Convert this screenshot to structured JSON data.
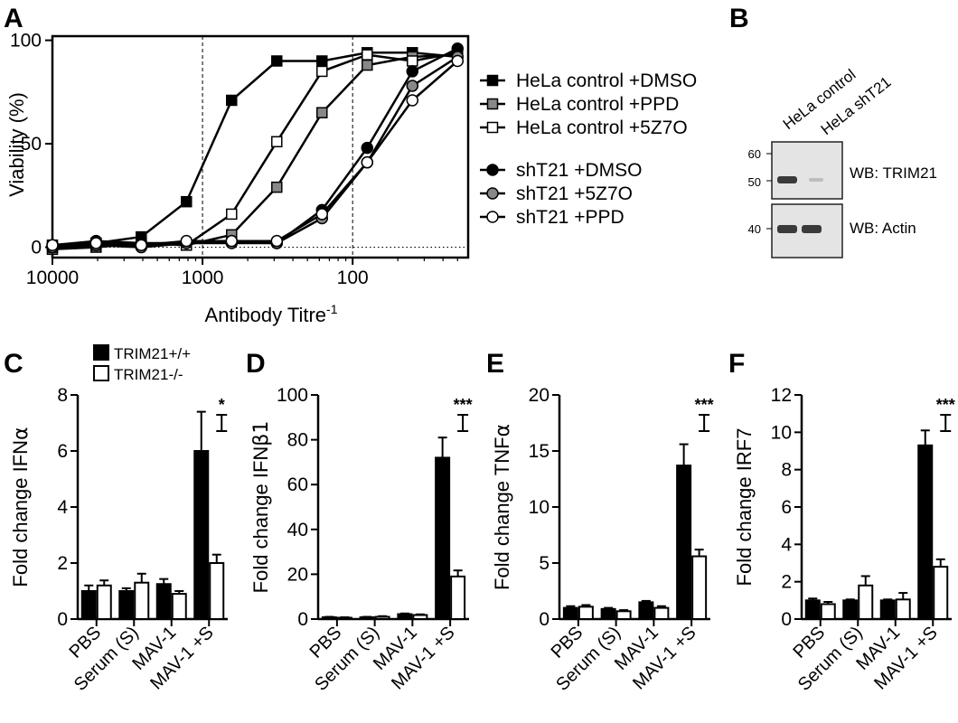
{
  "panels": {
    "A": "A",
    "B": "B",
    "C": "C",
    "D": "D",
    "E": "E",
    "F": "F"
  },
  "colors": {
    "black": "#000000",
    "grey": "#888888",
    "white": "#ffffff",
    "blot_bg": "#e4e4e4",
    "band": "#3a3a3a"
  },
  "chart_data": [
    {
      "id": "A",
      "type": "line",
      "xscale": "log-reversed",
      "xlim": [
        10000,
        17
      ],
      "ylim": [
        -5,
        102
      ],
      "xticks": [
        10000,
        1000,
        100
      ],
      "xtick_labels": [
        "10000",
        "1000",
        "100"
      ],
      "yticks": [
        0,
        50,
        100
      ],
      "ytick_labels": [
        "0",
        "50",
        "100"
      ],
      "xlabel": "Antibody Titre",
      "xlabel_sup": "-1",
      "ylabel": "Viability (%)",
      "vlines": [
        1000,
        100
      ],
      "hline": 0,
      "legend_placement": "right",
      "series": [
        {
          "name": "HeLa control +DMSO",
          "marker": "square",
          "fill": "black",
          "x": [
            10000,
            5120,
            2560,
            1280,
            640,
            320,
            160,
            80,
            40,
            20
          ],
          "y": [
            1,
            2,
            5,
            22,
            71,
            90,
            90,
            94,
            94,
            92
          ]
        },
        {
          "name": "HeLa control +PPD",
          "marker": "square",
          "fill": "grey",
          "x": [
            10000,
            5120,
            2560,
            1280,
            640,
            320,
            160,
            80,
            40,
            20
          ],
          "y": [
            -1,
            0,
            2,
            1,
            6,
            29,
            65,
            88,
            92,
            93
          ]
        },
        {
          "name": "HeLa control +5Z7O",
          "marker": "square",
          "fill": "white",
          "x": [
            10000,
            5120,
            2560,
            1280,
            640,
            320,
            160,
            80,
            40,
            20
          ],
          "y": [
            0,
            1,
            2,
            1,
            16,
            51,
            85,
            93,
            90,
            94
          ]
        },
        {
          "name": "shT21 +DMSO",
          "marker": "circle",
          "fill": "black",
          "x": [
            10000,
            5120,
            2560,
            1280,
            640,
            320,
            160,
            80,
            40,
            20
          ],
          "y": [
            1,
            3,
            2,
            2,
            3,
            2,
            18,
            48,
            85,
            96
          ]
        },
        {
          "name": "shT21 +5Z7O",
          "marker": "circle",
          "fill": "grey",
          "x": [
            10000,
            5120,
            2560,
            1280,
            640,
            320,
            160,
            80,
            40,
            20
          ],
          "y": [
            0,
            1,
            0,
            2,
            2,
            2,
            14,
            41,
            78,
            92
          ]
        },
        {
          "name": "shT21 +PPD",
          "marker": "circle",
          "fill": "white",
          "x": [
            10000,
            5120,
            2560,
            1280,
            640,
            320,
            160,
            80,
            40,
            20
          ],
          "y": [
            1,
            2,
            1,
            3,
            3,
            3,
            16,
            41,
            71,
            90
          ]
        }
      ]
    },
    {
      "id": "C",
      "type": "bar",
      "categories": [
        "PBS",
        "Serum (S)",
        "MAV-1",
        "MAV-1 +S"
      ],
      "ylabel": "Fold change IFN",
      "ylabel_greek": "α",
      "ylim": [
        0,
        8
      ],
      "yticks": [
        "0",
        "2",
        "4",
        "6",
        "8"
      ],
      "significance": "*",
      "legend": [
        "TRIM21+/+",
        "TRIM21-/-"
      ],
      "series": [
        {
          "name": "TRIM21+/+",
          "fill": "black",
          "values": [
            1.0,
            1.0,
            1.25,
            6.0
          ],
          "errors": [
            0.2,
            0.1,
            0.18,
            1.4
          ]
        },
        {
          "name": "TRIM21-/-",
          "fill": "white",
          "values": [
            1.2,
            1.3,
            0.9,
            2.0
          ],
          "errors": [
            0.18,
            0.32,
            0.1,
            0.3
          ]
        }
      ]
    },
    {
      "id": "D",
      "type": "bar",
      "categories": [
        "PBS",
        "Serum (S)",
        "MAV-1",
        "MAV-1 +S"
      ],
      "ylabel": "Fold change IFN",
      "ylabel_greek": "β1",
      "ylim": [
        0,
        100
      ],
      "yticks": [
        "0",
        "20",
        "40",
        "60",
        "80",
        "100"
      ],
      "significance": "***",
      "series": [
        {
          "name": "TRIM21+/+",
          "fill": "black",
          "values": [
            0.8,
            0.8,
            2.2,
            72
          ],
          "errors": [
            0.2,
            0.2,
            0.3,
            9
          ]
        },
        {
          "name": "TRIM21-/-",
          "fill": "white",
          "values": [
            0.6,
            1.0,
            1.8,
            19
          ],
          "errors": [
            0.2,
            0.3,
            0.3,
            2.7
          ]
        }
      ]
    },
    {
      "id": "E",
      "type": "bar",
      "categories": [
        "PBS",
        "Serum (S)",
        "MAV-1",
        "MAV-1 +S"
      ],
      "ylabel": "Fold change TNF",
      "ylabel_greek": "α",
      "ylim": [
        0,
        20
      ],
      "yticks": [
        "0",
        "5",
        "10",
        "15",
        "20"
      ],
      "significance": "***",
      "series": [
        {
          "name": "TRIM21+/+",
          "fill": "black",
          "values": [
            1.0,
            0.9,
            1.5,
            13.7
          ],
          "errors": [
            0.15,
            0.1,
            0.12,
            1.9
          ]
        },
        {
          "name": "TRIM21-/-",
          "fill": "white",
          "values": [
            1.1,
            0.7,
            1.0,
            5.6
          ],
          "errors": [
            0.15,
            0.1,
            0.15,
            0.6
          ]
        }
      ]
    },
    {
      "id": "F",
      "type": "bar",
      "categories": [
        "PBS",
        "Serum (S)",
        "MAV-1",
        "MAV-1 +S"
      ],
      "ylabel": "Fold change IRF7",
      "ylabel_greek": "",
      "ylim": [
        0,
        12
      ],
      "yticks": [
        "0",
        "2",
        "4",
        "6",
        "8",
        "10",
        "12"
      ],
      "significance": "***",
      "series": [
        {
          "name": "TRIM21+/+",
          "fill": "black",
          "values": [
            1.0,
            1.0,
            1.0,
            9.3
          ],
          "errors": [
            0.1,
            0.05,
            0.05,
            0.8
          ]
        },
        {
          "name": "TRIM21-/-",
          "fill": "white",
          "values": [
            0.8,
            1.8,
            1.05,
            2.8
          ],
          "errors": [
            0.12,
            0.5,
            0.35,
            0.4
          ]
        }
      ]
    }
  ],
  "western_blot": {
    "lanes": [
      "HeLa control",
      "HeLa shT21"
    ],
    "blots": [
      {
        "label": "WB: TRIM21",
        "markers": [
          "60",
          "50"
        ],
        "bands": [
          1.0,
          0.05
        ]
      },
      {
        "label": "WB: Actin",
        "markers": [
          "40"
        ],
        "bands": [
          1.0,
          1.0
        ]
      }
    ]
  }
}
